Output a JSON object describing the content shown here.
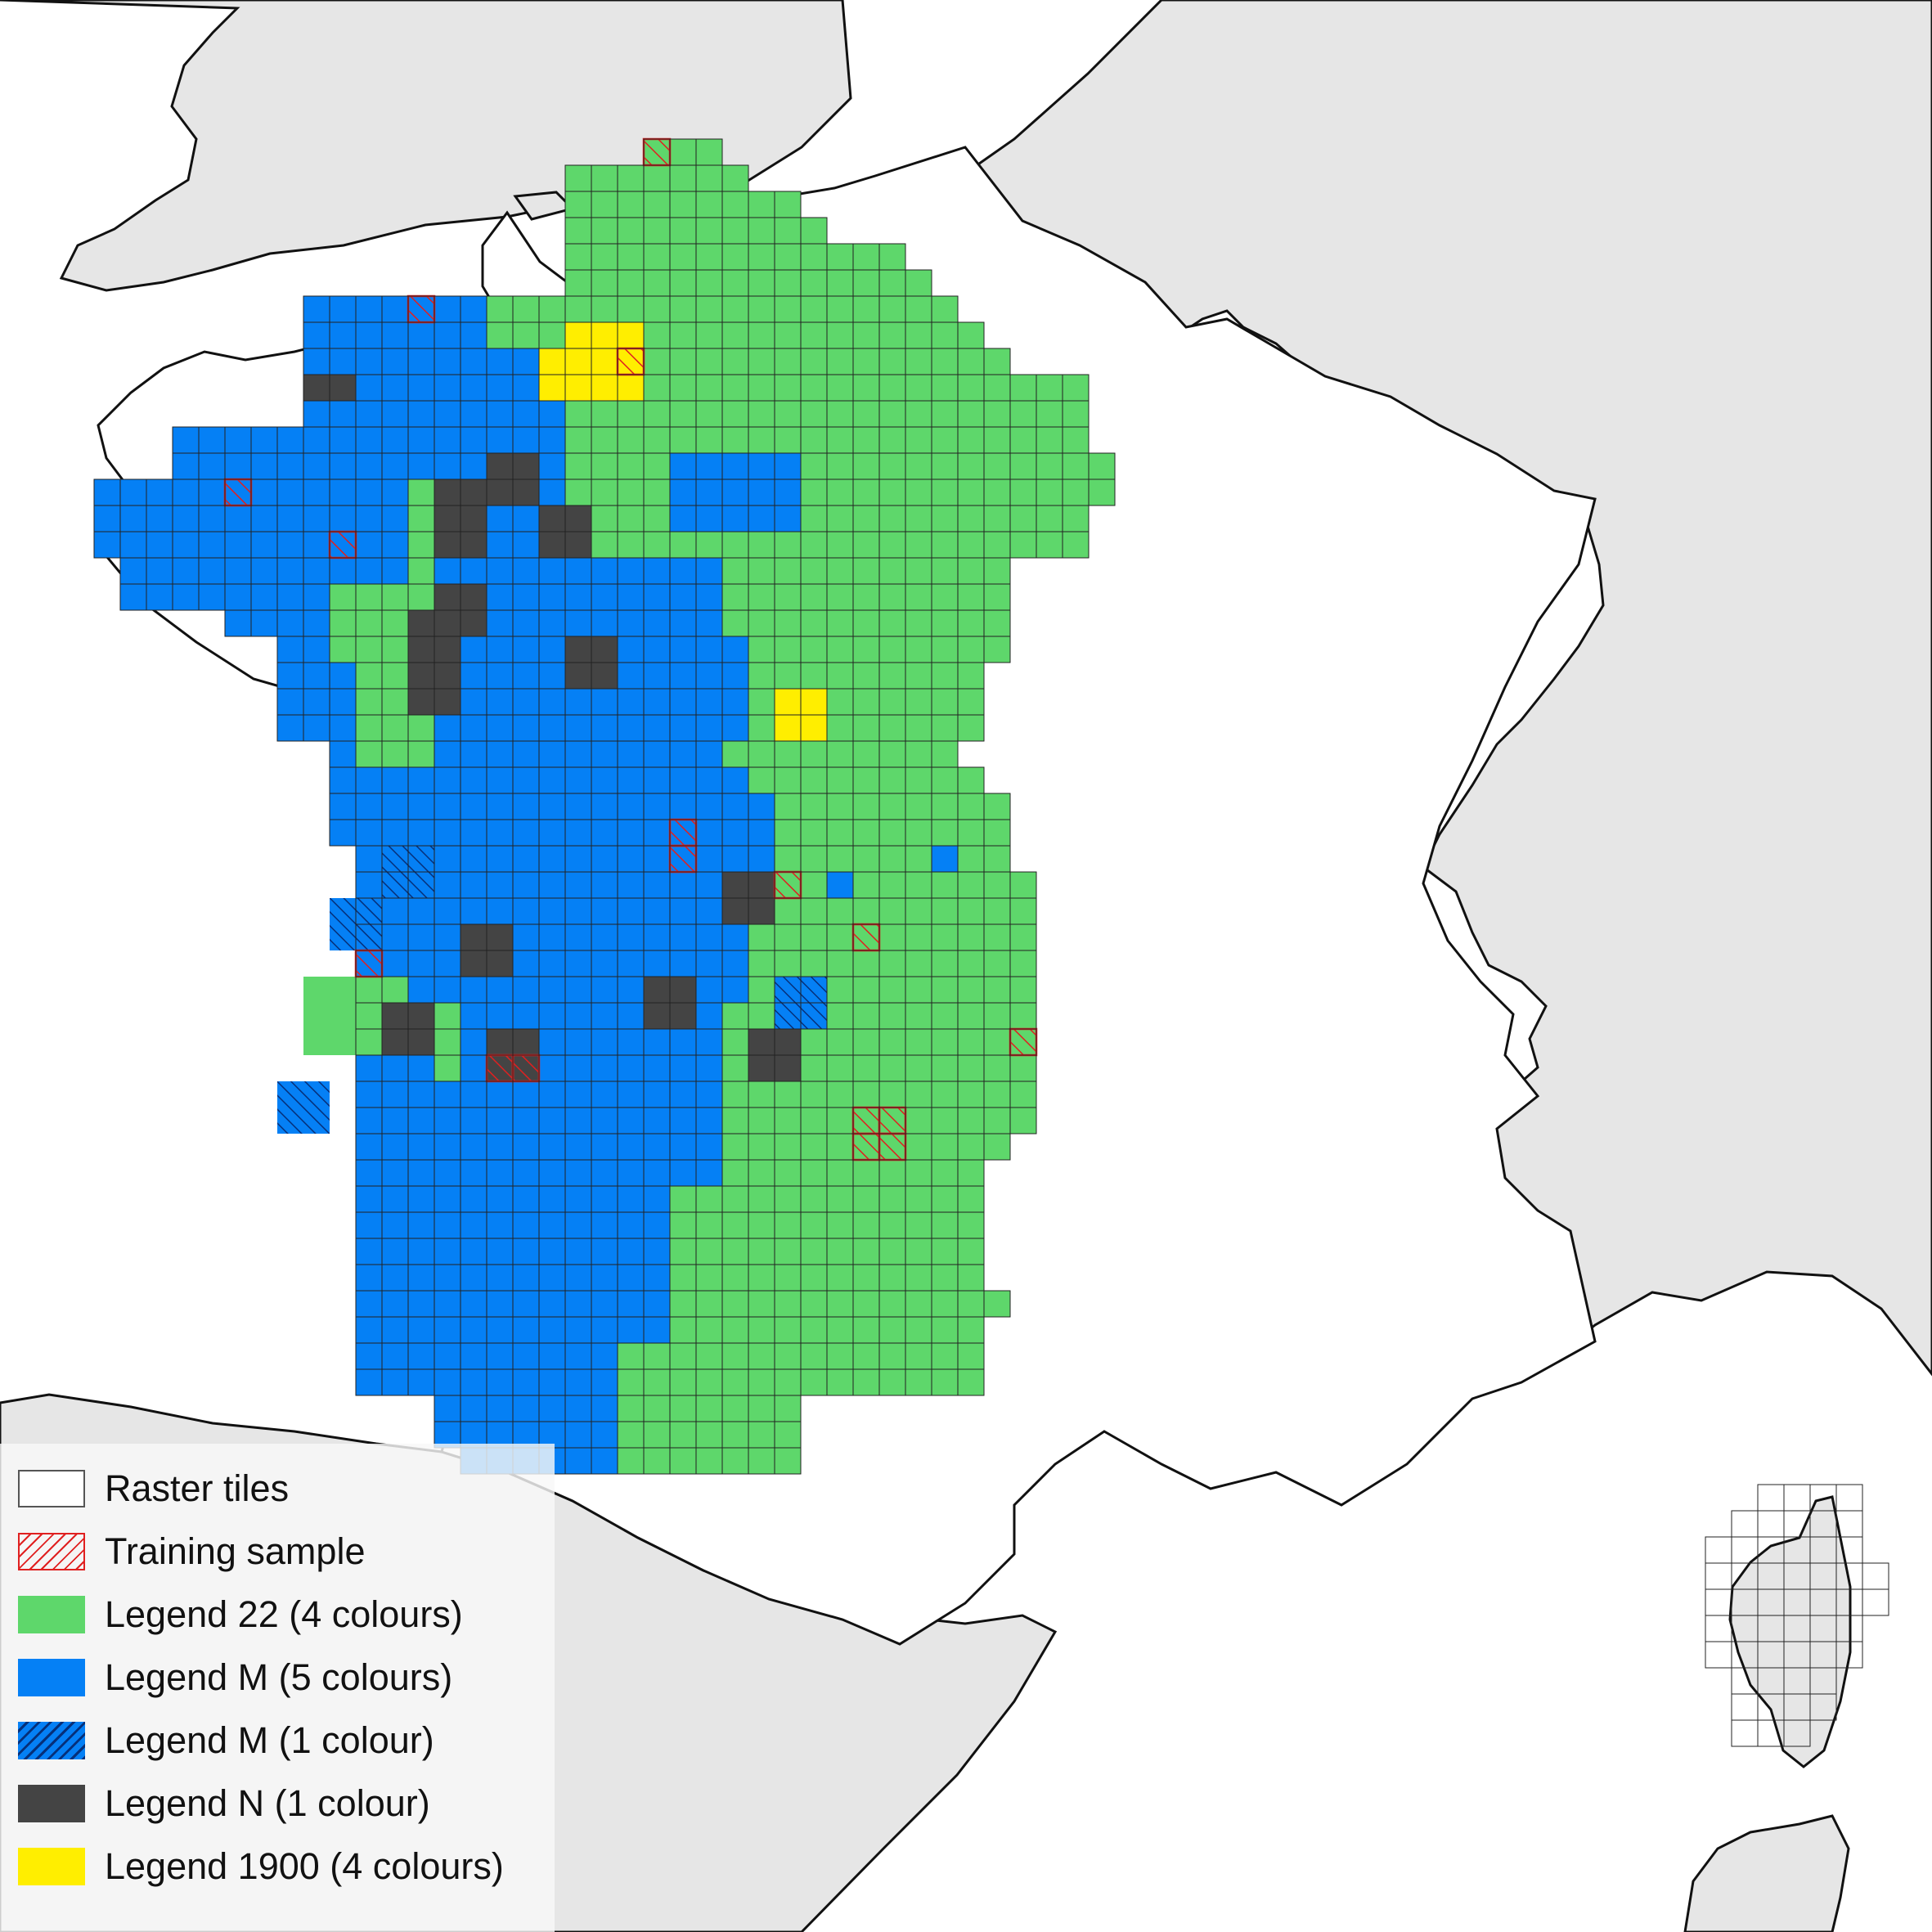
{
  "colors": {
    "land_background": "#e6e6e6",
    "sea": "#ffffff",
    "legend_22": "#5ed76b",
    "legend_m": "#0580f5",
    "legend_n": "#444444",
    "legend_1900": "#ffee00",
    "training_sample": "#e02020",
    "tile_border": "#222222"
  },
  "legend": {
    "items": [
      {
        "key": "raster",
        "label": "Raster tiles"
      },
      {
        "key": "training",
        "label": "Training sample"
      },
      {
        "key": "l22",
        "label": "Legend 22 (4 colours)"
      },
      {
        "key": "lm5",
        "label": "Legend M (5 colours)"
      },
      {
        "key": "lm1",
        "label": "Legend M (1 colour)"
      },
      {
        "key": "ln",
        "label": "Legend N (1 colour)"
      },
      {
        "key": "l1900",
        "label": "Legend 1900 (4 colours)"
      }
    ]
  }
}
